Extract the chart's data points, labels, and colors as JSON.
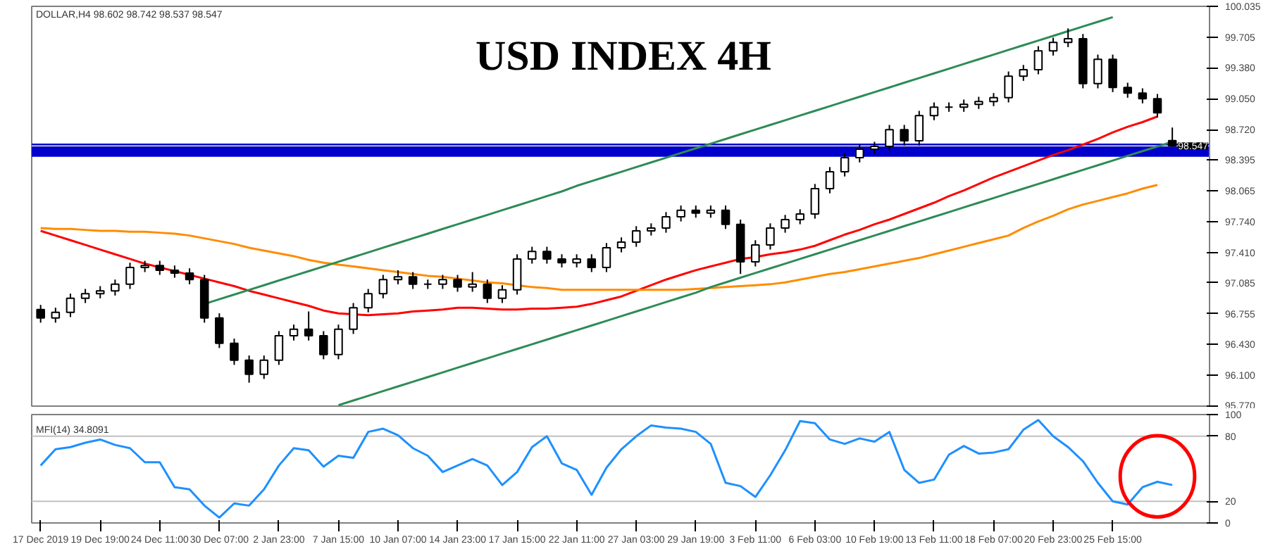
{
  "chart_data": [
    {
      "type": "candlestick",
      "title": "USD INDEX 4H",
      "subtitle": "DOLLAR,H4 98.602 98.742 98.537 98.547",
      "tick_labels": "y",
      "categories": [
        null,
        null,
        null,
        null,
        null,
        null,
        null,
        null,
        null,
        null,
        null,
        null,
        null,
        null,
        null,
        null,
        null,
        null,
        null,
        null,
        null,
        null,
        null,
        null,
        null,
        null,
        null,
        null,
        null,
        null,
        null,
        null,
        null,
        null,
        null,
        null,
        null,
        null,
        null,
        null,
        null,
        null,
        null,
        null,
        null,
        null,
        null,
        null,
        null,
        null,
        null,
        null,
        null,
        null,
        null,
        null,
        null,
        null,
        null,
        null,
        null,
        null,
        null,
        null,
        null,
        null,
        null,
        null,
        null,
        null,
        null,
        null,
        null,
        null,
        null,
        null,
        null
      ],
      "ylim": [
        95.77,
        100.035
      ],
      "yticks": [
        {
          "value": 95.77,
          "label": "95.770"
        },
        {
          "value": 96.1,
          "label": "96.100"
        },
        {
          "value": 96.43,
          "label": "96.430"
        },
        96.755,
        97.085,
        {
          "value": 97.41,
          "label": "97.410"
        },
        {
          "value": 97.74,
          "label": "97.740"
        },
        98.065,
        98.395,
        {
          "value": 98.72,
          "label": "98.720"
        },
        {
          "value": 99.05,
          "label": "99.050"
        },
        {
          "value": 99.38,
          "label": "99.380"
        },
        99.705,
        100.035
      ],
      "ohlc": [
        [
          96.8,
          96.85,
          96.66,
          96.71
        ],
        [
          96.71,
          96.82,
          96.66,
          96.77
        ],
        [
          96.77,
          96.97,
          96.72,
          96.92
        ],
        [
          96.92,
          97.02,
          96.87,
          96.97
        ],
        [
          96.97,
          97.05,
          96.92,
          97.0
        ],
        [
          97.0,
          97.12,
          96.95,
          97.07
        ],
        [
          97.07,
          97.3,
          97.02,
          97.25
        ],
        [
          97.25,
          97.32,
          97.2,
          97.27
        ],
        [
          97.27,
          97.32,
          97.17,
          97.22
        ],
        [
          97.22,
          97.27,
          97.14,
          97.19
        ],
        [
          97.19,
          97.24,
          97.07,
          97.12
        ],
        [
          97.12,
          97.17,
          96.66,
          96.71
        ],
        [
          96.71,
          96.76,
          96.39,
          96.44
        ],
        [
          96.44,
          96.49,
          96.21,
          96.26
        ],
        [
          96.26,
          96.31,
          96.02,
          96.11
        ],
        [
          96.11,
          96.31,
          96.06,
          96.26
        ],
        [
          96.26,
          96.57,
          96.21,
          96.52
        ],
        [
          96.52,
          96.64,
          96.47,
          96.59
        ],
        [
          96.59,
          96.78,
          96.47,
          96.52
        ],
        [
          96.52,
          96.57,
          96.27,
          96.32
        ],
        [
          96.32,
          96.64,
          96.27,
          96.59
        ],
        [
          96.59,
          96.87,
          96.54,
          96.82
        ],
        [
          96.82,
          97.02,
          96.77,
          96.97
        ],
        [
          96.97,
          97.17,
          96.92,
          97.12
        ],
        [
          97.12,
          97.22,
          97.07,
          97.15
        ],
        [
          97.15,
          97.2,
          97.02,
          97.07
        ],
        [
          97.07,
          97.12,
          97.02,
          97.07
        ],
        [
          97.07,
          97.17,
          97.02,
          97.12
        ],
        [
          97.12,
          97.17,
          96.99,
          97.04
        ],
        [
          97.04,
          97.2,
          96.99,
          97.07
        ],
        [
          97.07,
          97.12,
          96.87,
          96.92
        ],
        [
          96.92,
          97.06,
          96.87,
          97.01
        ],
        [
          97.01,
          97.39,
          96.96,
          97.34
        ],
        [
          97.34,
          97.47,
          97.29,
          97.42
        ],
        [
          97.42,
          97.47,
          97.29,
          97.34
        ],
        [
          97.34,
          97.39,
          97.25,
          97.3
        ],
        [
          97.3,
          97.39,
          97.25,
          97.34
        ],
        [
          97.34,
          97.39,
          97.2,
          97.25
        ],
        [
          97.25,
          97.51,
          97.2,
          97.46
        ],
        [
          97.46,
          97.57,
          97.41,
          97.52
        ],
        [
          97.52,
          97.69,
          97.47,
          97.64
        ],
        [
          97.64,
          97.72,
          97.59,
          97.67
        ],
        [
          97.67,
          97.84,
          97.62,
          97.79
        ],
        [
          97.79,
          97.91,
          97.74,
          97.86
        ],
        [
          97.86,
          97.91,
          97.78,
          97.83
        ],
        [
          97.83,
          97.91,
          97.78,
          97.86
        ],
        [
          97.86,
          97.91,
          97.66,
          97.71
        ],
        [
          97.71,
          97.76,
          97.18,
          97.31
        ],
        [
          97.31,
          97.54,
          97.26,
          97.49
        ],
        [
          97.49,
          97.72,
          97.44,
          97.67
        ],
        [
          97.67,
          97.81,
          97.62,
          97.76
        ],
        [
          97.76,
          97.87,
          97.71,
          97.82
        ],
        [
          97.82,
          98.14,
          97.77,
          98.09
        ],
        [
          98.09,
          98.32,
          98.04,
          98.27
        ],
        [
          98.27,
          98.47,
          98.22,
          98.42
        ],
        [
          98.42,
          98.56,
          98.37,
          98.51
        ],
        [
          98.51,
          98.59,
          98.46,
          98.54
        ],
        [
          98.54,
          98.77,
          98.49,
          98.72
        ],
        [
          98.72,
          98.77,
          98.55,
          98.6
        ],
        [
          98.6,
          98.92,
          98.55,
          98.87
        ],
        [
          98.87,
          99.01,
          98.82,
          98.96
        ],
        [
          98.96,
          99.01,
          98.91,
          98.96
        ],
        [
          98.96,
          99.04,
          98.91,
          98.99
        ],
        [
          98.99,
          99.07,
          98.94,
          99.02
        ],
        [
          99.02,
          99.11,
          98.97,
          99.06
        ],
        [
          99.06,
          99.34,
          99.01,
          99.29
        ],
        [
          99.29,
          99.41,
          99.24,
          99.36
        ],
        [
          99.36,
          99.61,
          99.31,
          99.56
        ],
        [
          99.56,
          99.7,
          99.51,
          99.65
        ],
        [
          99.65,
          99.8,
          99.6,
          99.69
        ],
        [
          99.69,
          99.74,
          99.16,
          99.21
        ],
        [
          99.21,
          99.52,
          99.16,
          99.47
        ],
        [
          99.47,
          99.52,
          99.12,
          99.17
        ],
        [
          99.17,
          99.22,
          99.06,
          99.11
        ],
        [
          99.11,
          99.16,
          99.0,
          99.05
        ],
        [
          99.05,
          99.1,
          98.85,
          98.9
        ],
        [
          98.602,
          98.742,
          98.537,
          98.547
        ]
      ],
      "series": [
        {
          "type": "line",
          "color": "#ff0000",
          "values": [
            97.64,
            97.59,
            97.54,
            97.49,
            97.44,
            97.39,
            97.34,
            97.29,
            97.25,
            97.21,
            97.17,
            97.13,
            97.09,
            97.05,
            97.0,
            96.96,
            96.92,
            96.88,
            96.84,
            96.79,
            96.76,
            96.75,
            96.74,
            96.75,
            96.76,
            96.78,
            96.79,
            96.8,
            96.82,
            96.82,
            96.81,
            96.8,
            96.8,
            96.81,
            96.81,
            96.82,
            96.83,
            96.86,
            96.9,
            96.94,
            97.0,
            97.06,
            97.12,
            97.17,
            97.22,
            97.26,
            97.3,
            97.34,
            97.36,
            97.39,
            97.41,
            97.44,
            97.48,
            97.54,
            97.6,
            97.65,
            97.71,
            97.76,
            97.82,
            97.88,
            97.94,
            98.01,
            98.07,
            98.14,
            98.21,
            98.27,
            98.33,
            98.39,
            98.45,
            98.5,
            98.56,
            98.62,
            98.69,
            98.75,
            98.8,
            98.86,
            null
          ]
        },
        {
          "type": "line",
          "color": "#ff8c00",
          "values": [
            97.67,
            97.66,
            97.66,
            97.65,
            97.64,
            97.64,
            97.63,
            97.63,
            97.62,
            97.61,
            97.59,
            97.56,
            97.53,
            97.5,
            97.46,
            97.43,
            97.4,
            97.37,
            97.33,
            97.3,
            97.28,
            97.26,
            97.24,
            97.22,
            97.2,
            97.18,
            97.16,
            97.15,
            97.13,
            97.11,
            97.09,
            97.08,
            97.06,
            97.04,
            97.03,
            97.01,
            97.01,
            97.01,
            97.01,
            97.01,
            97.01,
            97.01,
            97.01,
            97.01,
            97.02,
            97.03,
            97.04,
            97.05,
            97.06,
            97.07,
            97.09,
            97.12,
            97.15,
            97.18,
            97.2,
            97.23,
            97.26,
            97.29,
            97.32,
            97.35,
            97.39,
            97.43,
            97.47,
            97.51,
            97.55,
            97.59,
            97.67,
            97.74,
            97.8,
            97.87,
            97.92,
            97.96,
            98.0,
            98.04,
            98.09,
            98.13,
            null
          ]
        },
        {
          "type": "line",
          "color": "#2e8b57",
          "values": [
            null,
            null,
            null,
            null,
            null,
            null,
            null,
            null,
            null,
            null,
            null,
            96.86,
            96.91,
            96.96,
            97.01,
            97.06,
            97.11,
            97.16,
            97.21,
            97.26,
            97.31,
            97.36,
            97.41,
            97.46,
            97.51,
            97.56,
            97.61,
            97.66,
            97.71,
            97.76,
            97.81,
            97.86,
            97.91,
            97.96,
            98.01,
            98.06,
            98.12,
            98.17,
            98.22,
            98.27,
            98.32,
            98.37,
            98.42,
            98.47,
            98.52,
            98.57,
            98.62,
            98.67,
            98.72,
            98.77,
            98.82,
            98.87,
            98.92,
            98.97,
            99.02,
            99.07,
            99.12,
            99.17,
            99.22,
            99.27,
            99.32,
            99.37,
            99.42,
            99.47,
            99.52,
            99.57,
            99.62,
            99.67,
            99.72,
            99.77,
            99.82,
            99.87,
            99.92,
            null,
            null,
            null,
            null
          ]
        },
        {
          "type": "line",
          "color": "#2e8b57",
          "values": [
            null,
            null,
            null,
            null,
            null,
            null,
            null,
            null,
            null,
            null,
            null,
            null,
            null,
            null,
            null,
            null,
            null,
            null,
            null,
            null,
            95.78,
            95.83,
            95.88,
            95.93,
            95.98,
            96.03,
            96.08,
            96.13,
            96.18,
            96.23,
            96.28,
            96.33,
            96.38,
            96.43,
            96.48,
            96.53,
            96.58,
            96.63,
            96.68,
            96.73,
            96.78,
            96.83,
            96.88,
            96.93,
            96.98,
            97.04,
            97.09,
            97.14,
            97.19,
            97.24,
            97.29,
            97.34,
            97.39,
            97.44,
            97.49,
            97.54,
            97.59,
            97.64,
            97.69,
            97.74,
            97.79,
            97.84,
            97.89,
            97.94,
            97.99,
            98.04,
            98.09,
            98.14,
            98.19,
            98.24,
            98.29,
            98.34,
            98.39,
            98.44,
            98.49,
            98.54,
            98.59
          ]
        }
      ],
      "ref_lines": [
        {
          "axis": "y",
          "value": 98.547,
          "label": "98.547",
          "color": "#c0c0c0"
        }
      ],
      "bands": [
        {
          "axis": "y",
          "from": 98.43,
          "to": 98.57,
          "color": "#0000cd"
        }
      ]
    },
    {
      "type": "line",
      "title": "MFI(14) 34.8091",
      "ylim": [
        0,
        100
      ],
      "yticks": [
        0,
        20,
        80,
        100
      ],
      "categories": [
        "17 Dec 2019",
        null,
        null,
        null,
        "19 Dec 19:00",
        null,
        null,
        null,
        "24 Dec 11:00",
        null,
        null,
        null,
        "30 Dec 07:00",
        null,
        null,
        null,
        "2 Jan 23:00",
        null,
        null,
        null,
        "7 Jan 15:00",
        null,
        null,
        null,
        "10 Jan 07:00",
        null,
        null,
        null,
        "14 Jan 23:00",
        null,
        null,
        null,
        "17 Jan 15:00",
        null,
        null,
        null,
        "22 Jan 11:00",
        null,
        null,
        null,
        "27 Jan 03:00",
        null,
        null,
        null,
        "29 Jan 19:00",
        null,
        null,
        null,
        "3 Feb 11:00",
        null,
        null,
        null,
        "6 Feb 03:00",
        null,
        null,
        null,
        "10 Feb 19:00",
        null,
        null,
        null,
        "13 Feb 11:00",
        null,
        null,
        null,
        "18 Feb 07:00",
        null,
        null,
        null,
        "20 Feb 23:00",
        null,
        null,
        null,
        "25 Feb 15:00",
        null,
        null,
        null,
        null
      ],
      "series": [
        {
          "color": "#1e90ff",
          "values": [
            53,
            68,
            70,
            74,
            77,
            72,
            69,
            56,
            56,
            33,
            31,
            16,
            5,
            18,
            16,
            31,
            53,
            69,
            67,
            52,
            62,
            60,
            84,
            87,
            81,
            69,
            62,
            47,
            53,
            59,
            53,
            35,
            47,
            70,
            80,
            55,
            49,
            26,
            51,
            68,
            80,
            90,
            88,
            87,
            84,
            73,
            37,
            34,
            24,
            44,
            67,
            94,
            92,
            77,
            73,
            78,
            75,
            84,
            49,
            37,
            40,
            63,
            71,
            64,
            65,
            68,
            86,
            95,
            80,
            70,
            57,
            37,
            20,
            17,
            33,
            38,
            35
          ]
        }
      ],
      "ref_lines": [
        {
          "axis": "y",
          "value": 20,
          "color": "#c0c0c0"
        },
        {
          "axis": "y",
          "value": 80,
          "color": "#c0c0c0"
        }
      ]
    }
  ]
}
